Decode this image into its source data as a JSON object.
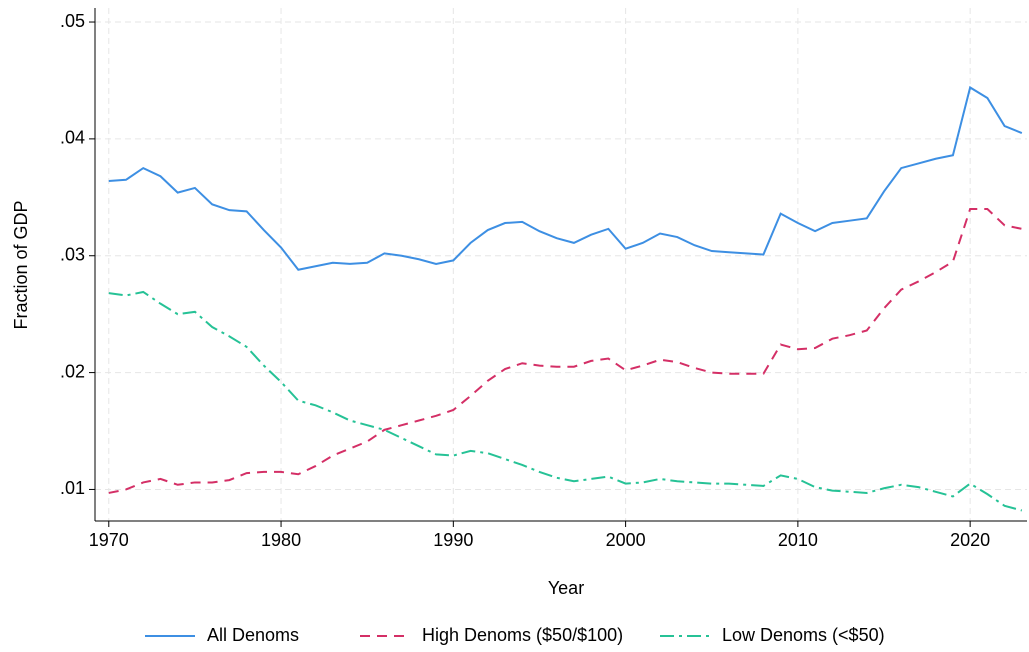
{
  "chart_data": {
    "type": "line",
    "xlabel": "Year",
    "ylabel": "Fraction of GDP",
    "x": [
      1970,
      1971,
      1972,
      1973,
      1974,
      1975,
      1976,
      1977,
      1978,
      1979,
      1980,
      1981,
      1982,
      1983,
      1984,
      1985,
      1986,
      1987,
      1988,
      1989,
      1990,
      1991,
      1992,
      1993,
      1994,
      1995,
      1996,
      1997,
      1998,
      1999,
      2000,
      2001,
      2002,
      2003,
      2004,
      2005,
      2006,
      2007,
      2008,
      2009,
      2010,
      2011,
      2012,
      2013,
      2014,
      2015,
      2016,
      2017,
      2018,
      2019,
      2020,
      2021,
      2022,
      2023
    ],
    "series": [
      {
        "name": "All Denoms",
        "color": "#3d8fe3",
        "dash": "solid",
        "values": [
          0.0364,
          0.0365,
          0.0375,
          0.0368,
          0.0354,
          0.0358,
          0.0344,
          0.0339,
          0.0338,
          0.0322,
          0.0307,
          0.0288,
          0.0291,
          0.0294,
          0.0293,
          0.0294,
          0.0302,
          0.03,
          0.0297,
          0.0293,
          0.0296,
          0.0311,
          0.0322,
          0.0328,
          0.0329,
          0.0321,
          0.0315,
          0.0311,
          0.0318,
          0.0323,
          0.0306,
          0.0311,
          0.0319,
          0.0316,
          0.0309,
          0.0304,
          0.0303,
          0.0302,
          0.0301,
          0.0336,
          0.0328,
          0.0321,
          0.0328,
          0.033,
          0.0332,
          0.0355,
          0.0375,
          0.0379,
          0.0383,
          0.0386,
          0.0444,
          0.0435,
          0.0411,
          0.0405
        ]
      },
      {
        "name": "High Denoms ($50/$100)",
        "color": "#d42f66",
        "dash": "dash",
        "values": [
          0.0097,
          0.01,
          0.0106,
          0.0109,
          0.0104,
          0.0106,
          0.0106,
          0.0108,
          0.0114,
          0.0115,
          0.0115,
          0.0113,
          0.012,
          0.0129,
          0.0135,
          0.0141,
          0.0151,
          0.0155,
          0.0159,
          0.0163,
          0.0168,
          0.018,
          0.0193,
          0.0203,
          0.0208,
          0.0206,
          0.0205,
          0.0205,
          0.021,
          0.0212,
          0.0202,
          0.0206,
          0.0211,
          0.0209,
          0.0204,
          0.02,
          0.0199,
          0.0199,
          0.0199,
          0.0224,
          0.022,
          0.0221,
          0.0229,
          0.0232,
          0.0236,
          0.0255,
          0.0271,
          0.0278,
          0.0286,
          0.0295,
          0.034,
          0.034,
          0.0326,
          0.0323
        ]
      },
      {
        "name": "Low Denoms (<$50)",
        "color": "#26c296",
        "dash": "dashdot",
        "values": [
          0.0268,
          0.0266,
          0.0269,
          0.0259,
          0.025,
          0.0252,
          0.0239,
          0.0231,
          0.0222,
          0.0206,
          0.0192,
          0.0176,
          0.0172,
          0.0166,
          0.0159,
          0.0155,
          0.0151,
          0.0144,
          0.0137,
          0.013,
          0.0129,
          0.0133,
          0.0131,
          0.0126,
          0.0121,
          0.0115,
          0.011,
          0.0107,
          0.0109,
          0.0111,
          0.0105,
          0.0106,
          0.0109,
          0.0107,
          0.0106,
          0.0105,
          0.0105,
          0.0104,
          0.0103,
          0.0112,
          0.0109,
          0.0102,
          0.0099,
          0.0098,
          0.0097,
          0.0101,
          0.0104,
          0.0102,
          0.0098,
          0.0094,
          0.0105,
          0.0096,
          0.0086,
          0.0082
        ]
      }
    ],
    "xlim": [
      1969.2,
      2023.3
    ],
    "xticks": [
      1970,
      1980,
      1990,
      2000,
      2010,
      2020
    ],
    "ylim": [
      0.0073,
      0.0512
    ],
    "yticks": [
      {
        "value": 0.01,
        "label": ".01"
      },
      {
        "value": 0.02,
        "label": ".02"
      },
      {
        "value": 0.03,
        "label": ".03"
      },
      {
        "value": 0.04,
        "label": ".04"
      },
      {
        "value": 0.05,
        "label": ".05"
      }
    ],
    "grid": true,
    "legend": "bottom"
  }
}
